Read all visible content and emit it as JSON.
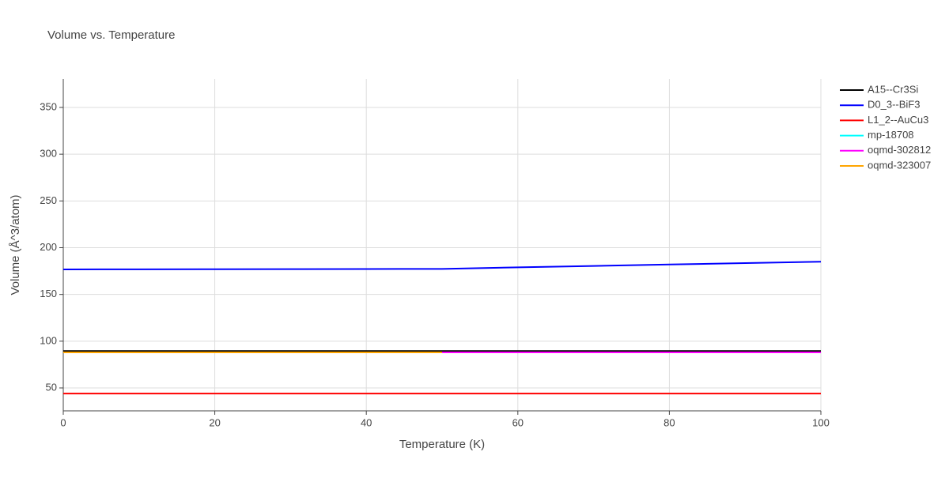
{
  "chart_data": {
    "type": "line",
    "title": "Volume vs. Temperature",
    "x_label": "Temperature (K)",
    "y_label": "Volume (Å^3/atom)",
    "x": [
      0,
      10,
      20,
      30,
      40,
      50,
      60,
      70,
      80,
      90,
      100
    ],
    "series": [
      {
        "name": "A15--Cr3Si",
        "color": "#000000",
        "values": [
          89.5,
          89.5,
          89.5,
          89.5,
          89.5,
          89.5,
          89.5,
          89.5,
          89.5,
          89.5,
          89.5
        ]
      },
      {
        "name": "D0_3--BiF3",
        "color": "#0000ff",
        "values": [
          176.8,
          176.9,
          177,
          177.1,
          177.2,
          177.3,
          179,
          180.5,
          182,
          183.5,
          185
        ]
      },
      {
        "name": "L1_2--AuCu3",
        "color": "#ff0000",
        "values": [
          44,
          44,
          44,
          44,
          44,
          44,
          44,
          44,
          44,
          44,
          44
        ]
      },
      {
        "name": "mp-18708",
        "color": "#00ffff",
        "values": [
          88,
          88,
          88,
          88,
          88,
          88,
          88,
          88,
          88,
          88,
          88
        ]
      },
      {
        "name": "oqmd-302812",
        "color": "#ff00ff",
        "values": [
          null,
          null,
          null,
          null,
          null,
          88,
          88,
          88,
          88,
          88,
          88
        ]
      },
      {
        "name": "oqmd-323007",
        "color": "#ffa500",
        "values": [
          88,
          88,
          88,
          88,
          88,
          88,
          null,
          null,
          null,
          null,
          null
        ]
      }
    ],
    "xlim": [
      0,
      100
    ],
    "xticks": [
      0,
      20,
      40,
      60,
      80,
      100
    ],
    "ylim": [
      25.5,
      380.4
    ],
    "yticks": [
      50,
      100,
      150,
      200,
      250,
      300,
      350
    ],
    "grid": true,
    "legend": "right"
  }
}
